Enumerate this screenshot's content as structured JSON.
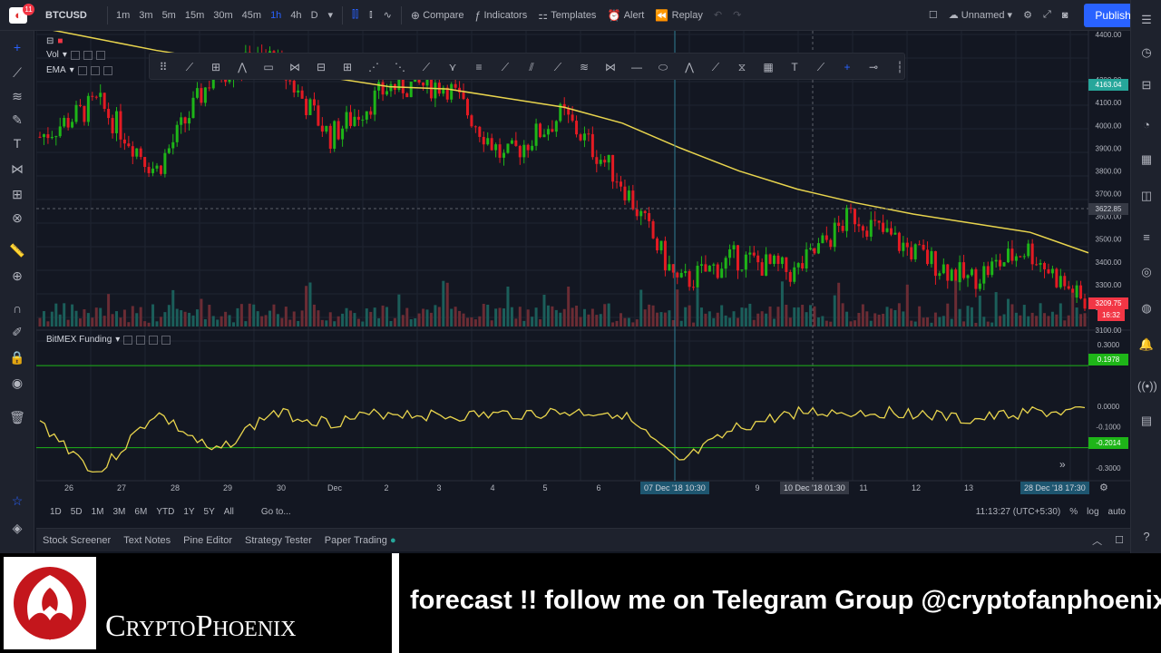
{
  "topbar": {
    "symbol": "BTCUSD",
    "intervals": [
      "1m",
      "3m",
      "5m",
      "15m",
      "30m",
      "45m",
      "1h",
      "4h",
      "D"
    ],
    "active_interval": "1h",
    "compare": "Compare",
    "indicators": "Indicators",
    "templates": "Templates",
    "alert": "Alert",
    "replay": "Replay",
    "layout_name": "Unnamed",
    "publish": "Publish",
    "notification_count": "11"
  },
  "legend": {
    "vol": "Vol",
    "ema": "EMA",
    "funding": "BitMEX Funding"
  },
  "price_axis": {
    "labels": [
      "4400.00",
      "4200.00",
      "4100.00",
      "4000.00",
      "3900.00",
      "3800.00",
      "3700.00",
      "3600.00",
      "3500.00",
      "3400.00",
      "3300.00",
      "3200.00",
      "3100.00"
    ],
    "ema_tag": "4163.04",
    "crosshair_tag": "3622.85",
    "last_price_tag": "3209.75",
    "countdown_tag": "16:32"
  },
  "funding_axis": {
    "labels": [
      "0.3000",
      "0.0000",
      "-0.1000",
      "-0.3000"
    ],
    "upper_tag": "0.1978",
    "lower_tag": "-0.2014"
  },
  "time_axis": {
    "labels": [
      "26",
      "27",
      "28",
      "29",
      "30",
      "Dec",
      "2",
      "3",
      "4",
      "5",
      "6",
      "9",
      "11",
      "12",
      "13"
    ],
    "marker_1": "07 Dec '18   10:30",
    "crosshair": "10 Dec '18   01:30",
    "marker_2": "28 Dec '18   17:30"
  },
  "range_bar": {
    "ranges": [
      "1D",
      "5D",
      "1M",
      "3M",
      "6M",
      "YTD",
      "1Y",
      "5Y",
      "All"
    ],
    "goto": "Go to...",
    "clock": "11:13:27 (UTC+5:30)",
    "percent": "%",
    "log": "log",
    "auto": "auto"
  },
  "bottom_panels": [
    "Stock Screener",
    "Text Notes",
    "Pine Editor",
    "Strategy Tester",
    "Paper Trading"
  ],
  "banner": {
    "brand": "CryptoPhoenix",
    "ticker": "forecast !! follow me on Telegram Group @cryptofanphoenix"
  },
  "chart_data": {
    "type": "line",
    "symbol": "BTCUSD",
    "interval": "1h",
    "price_range": [
      3100,
      4400
    ],
    "x": [
      "26",
      "27",
      "28",
      "29",
      "30",
      "Dec",
      "2",
      "3",
      "4",
      "5",
      "6",
      "7",
      "8",
      "9",
      "10",
      "11",
      "12",
      "13",
      "28 Dec"
    ],
    "series": [
      {
        "name": "BTCUSD",
        "values": [
          3950,
          4100,
          3800,
          4230,
          4300,
          3950,
          4170,
          4180,
          3850,
          4050,
          3760,
          3300,
          3420,
          3350,
          3610,
          3450,
          3320,
          3460,
          3209.75
        ]
      },
      {
        "name": "EMA",
        "values": [
          4430,
          4380,
          4330,
          4290,
          4250,
          4210,
          4170,
          4160,
          4120,
          4080,
          4010,
          3900,
          3800,
          3720,
          3660,
          3610,
          3570,
          3530,
          3440
        ]
      }
    ],
    "funding": {
      "name": "BitMEX Funding",
      "range": [
        -0.3,
        0.3
      ],
      "upper_level": 0.1978,
      "lower_level": -0.2014,
      "values": [
        -0.05,
        -0.3,
        0.0,
        -0.2,
        0.0,
        -0.05,
        0.0,
        -0.02,
        -0.01,
        0.0,
        0.0,
        -0.25,
        -0.08,
        0.0,
        0.0,
        0.0,
        -0.04,
        0.0,
        0.0
      ]
    },
    "grid": true
  }
}
